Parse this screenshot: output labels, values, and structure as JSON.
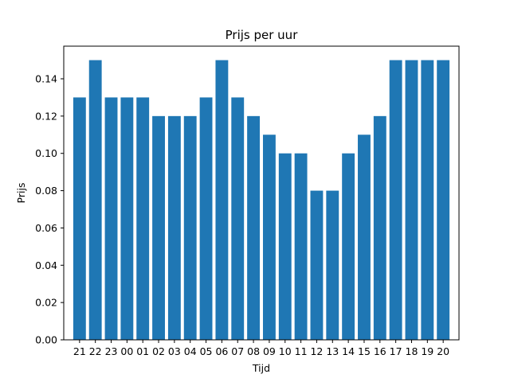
{
  "chart_data": {
    "type": "bar",
    "title": "Prijs per uur",
    "xlabel": "Tijd",
    "ylabel": "Prijs",
    "categories": [
      "21",
      "22",
      "23",
      "00",
      "01",
      "02",
      "03",
      "04",
      "05",
      "06",
      "07",
      "08",
      "09",
      "10",
      "11",
      "12",
      "13",
      "14",
      "15",
      "16",
      "17",
      "18",
      "19",
      "20"
    ],
    "values": [
      0.13,
      0.15,
      0.13,
      0.13,
      0.13,
      0.12,
      0.12,
      0.12,
      0.13,
      0.15,
      0.13,
      0.12,
      0.11,
      0.1,
      0.1,
      0.08,
      0.08,
      0.1,
      0.11,
      0.12,
      0.15,
      0.15,
      0.15,
      0.15
    ],
    "ylim": [
      0,
      0.1575
    ],
    "yticks": [
      "0.00",
      "0.02",
      "0.04",
      "0.06",
      "0.08",
      "0.10",
      "0.12",
      "0.14"
    ],
    "bar_color": "#1f77b4",
    "grid": false,
    "legend": "none"
  }
}
